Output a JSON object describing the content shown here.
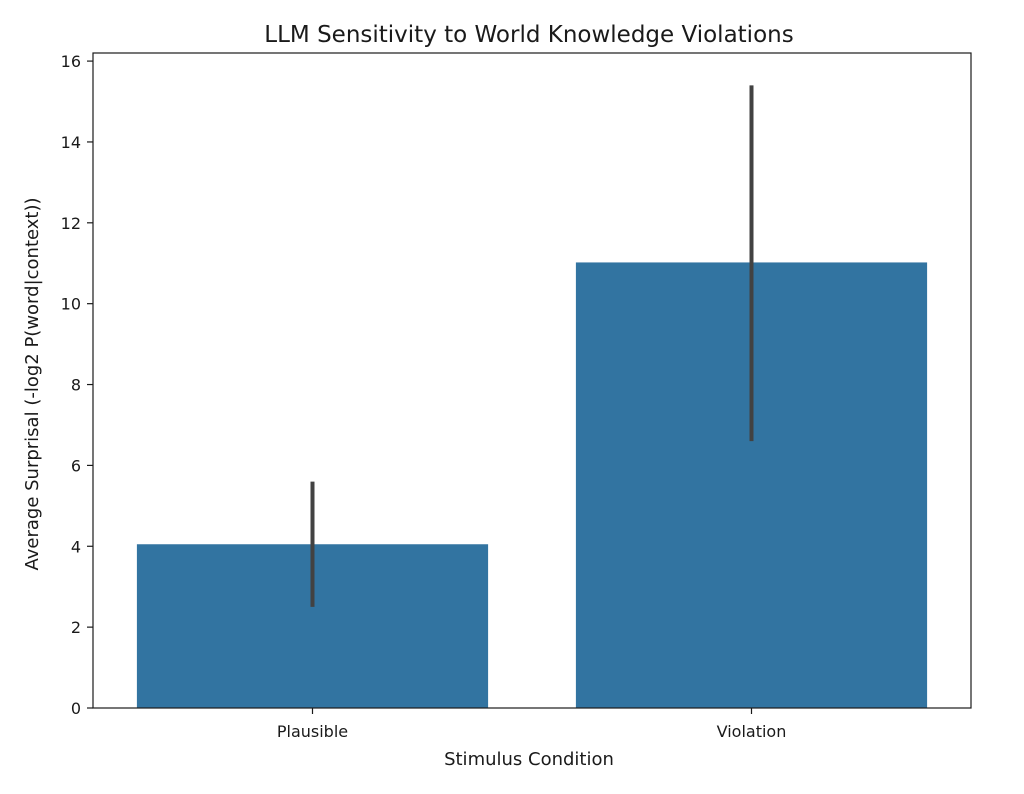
{
  "chart_data": {
    "type": "bar",
    "title": "LLM Sensitivity to World Knowledge Violations",
    "xlabel": "Stimulus Condition",
    "ylabel": "Average Surprisal (-log2 P(word|context))",
    "categories": [
      "Plausible",
      "Violation"
    ],
    "values": [
      4.05,
      11.02
    ],
    "error_low": [
      2.5,
      6.6
    ],
    "error_high": [
      5.6,
      15.4
    ],
    "ylim": [
      0,
      16.2
    ],
    "yticks": [
      0,
      2,
      4,
      6,
      8,
      10,
      12,
      14,
      16
    ],
    "grid": false,
    "colors": {
      "bar": "#3274a1",
      "errorbar": "#424242",
      "axis": "#1a1a1a"
    }
  }
}
